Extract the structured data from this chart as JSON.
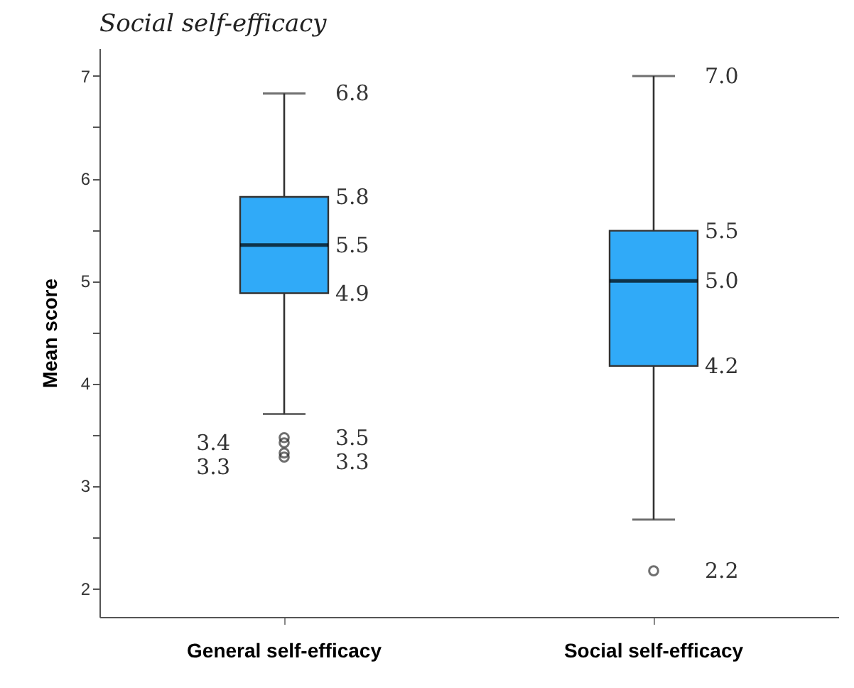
{
  "chart_data": {
    "type": "box",
    "title": "Social self-efficacy",
    "ylabel": "Mean score",
    "categories": [
      "General self-efficacy",
      "Social self-efficacy"
    ],
    "series": [
      {
        "color": "#30aaf8",
        "boxes": [
          {
            "low": 3.7,
            "q1": 4.88,
            "median": 5.35,
            "q3": 5.82,
            "high": 6.83,
            "outliers": [
              3.47,
              3.42,
              3.32,
              3.28
            ]
          },
          {
            "low": 2.67,
            "q1": 4.17,
            "median": 5.0,
            "q3": 5.49,
            "high": 7.0,
            "outliers": [
              2.17
            ]
          }
        ]
      }
    ],
    "ylim": [
      1.72,
      7.27
    ],
    "yticks": [
      2,
      {
        "value": 2.5,
        "label": null
      },
      3,
      {
        "value": 3.5,
        "label": null
      },
      4,
      {
        "value": 4.5,
        "label": null
      },
      5,
      {
        "value": 5.5,
        "label": null
      },
      6,
      {
        "value": 6.5,
        "label": null
      },
      7
    ],
    "marker": "circle",
    "annotations": [
      {
        "text": "6.8",
        "x": "General self-efficacy",
        "y": 6.83
      },
      {
        "text": "5.8",
        "x": "General self-efficacy",
        "y": 5.82
      },
      {
        "text": "5.5",
        "x": "General self-efficacy",
        "y": 5.35
      },
      {
        "text": "4.9",
        "x": "General self-efficacy",
        "y": 4.88
      },
      "3.5",
      "3.4",
      "3.3",
      "3.3",
      {
        "text": "7.0",
        "x": "Social self-efficacy",
        "y": 7.0
      },
      {
        "text": "5.5",
        "x": "Social self-efficacy",
        "y": 5.49
      },
      {
        "text": "5.0",
        "x": "Social self-efficacy",
        "y": 5.0
      },
      {
        "text": "4.2",
        "x": "Social self-efficacy",
        "y": 4.17
      },
      "2.2"
    ]
  }
}
